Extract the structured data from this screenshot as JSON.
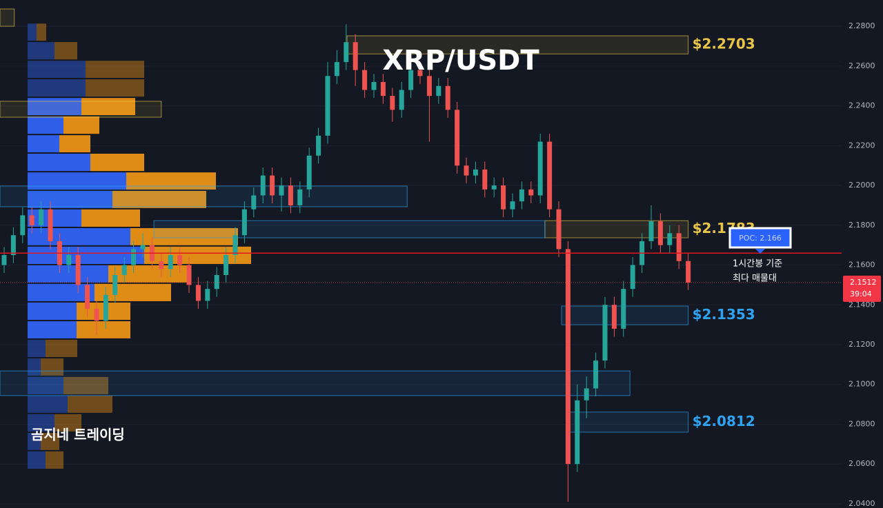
{
  "chart_data": {
    "type": "candlestick",
    "title": "XRP/USDT",
    "watermark": "곰지네 트레이딩",
    "ylim": [
      2.0379,
      2.2932
    ],
    "yticks": [
      {
        "value": 2.28,
        "label": "2.2800"
      },
      {
        "value": 2.26,
        "label": "2.2600"
      },
      {
        "value": 2.24,
        "label": "2.2400"
      },
      {
        "value": 2.22,
        "label": "2.2200"
      },
      {
        "value": 2.2,
        "label": "2.2000"
      },
      {
        "value": 2.18,
        "label": "2.1800"
      },
      {
        "value": 2.16,
        "label": "2.1600"
      },
      {
        "value": 2.14,
        "label": "2.1400"
      },
      {
        "value": 2.12,
        "label": "2.1200"
      },
      {
        "value": 2.1,
        "label": "2.1000"
      },
      {
        "value": 2.08,
        "label": "2.0800"
      },
      {
        "value": 2.06,
        "label": "2.0600"
      },
      {
        "value": 2.04,
        "label": "2.0400"
      }
    ],
    "grid": true,
    "up_color": "#26a69a",
    "down_color": "#ef5350",
    "open": [
      2.16,
      2.165,
      2.175,
      2.185,
      2.18,
      2.188,
      2.172,
      2.16,
      2.165,
      2.15,
      2.138,
      2.132,
      2.145,
      2.155,
      2.16,
      2.168,
      2.17,
      2.162,
      2.158,
      2.165,
      2.16,
      2.15,
      2.142,
      2.148,
      2.155,
      2.165,
      2.175,
      2.188,
      2.195,
      2.205,
      2.195,
      2.2,
      2.19,
      2.198,
      2.215,
      2.225,
      2.255,
      2.262,
      2.272,
      2.258,
      2.248,
      2.252,
      2.245,
      2.238,
      2.248,
      2.258,
      2.255,
      2.245,
      2.25,
      2.238,
      2.21,
      2.205,
      2.208,
      2.198,
      2.2,
      2.188,
      2.192,
      2.198,
      2.195,
      2.222,
      2.188,
      2.168,
      2.06,
      2.092,
      2.098,
      2.112,
      2.14,
      2.128,
      2.148,
      2.16,
      2.172,
      2.182,
      2.17,
      2.176,
      2.162
    ],
    "high": [
      2.169,
      2.179,
      2.189,
      2.189,
      2.192,
      2.192,
      2.176,
      2.169,
      2.169,
      2.154,
      2.142,
      2.149,
      2.159,
      2.164,
      2.172,
      2.176,
      2.174,
      2.166,
      2.169,
      2.169,
      2.164,
      2.154,
      2.152,
      2.159,
      2.169,
      2.179,
      2.192,
      2.199,
      2.209,
      2.209,
      2.204,
      2.204,
      2.202,
      2.219,
      2.229,
      2.262,
      2.268,
      2.281,
      2.276,
      2.262,
      2.256,
      2.256,
      2.249,
      2.252,
      2.262,
      2.262,
      2.259,
      2.254,
      2.254,
      2.242,
      2.214,
      2.212,
      2.212,
      2.204,
      2.204,
      2.196,
      2.202,
      2.202,
      2.226,
      2.226,
      2.192,
      2.172,
      2.1,
      2.104,
      2.116,
      2.144,
      2.144,
      2.152,
      2.164,
      2.176,
      2.19,
      2.186,
      2.18,
      2.18,
      2.166
    ],
    "low": [
      2.156,
      2.161,
      2.171,
      2.176,
      2.176,
      2.168,
      2.156,
      2.156,
      2.146,
      2.134,
      2.125,
      2.128,
      2.141,
      2.151,
      2.156,
      2.164,
      2.158,
      2.154,
      2.154,
      2.156,
      2.146,
      2.138,
      2.138,
      2.144,
      2.151,
      2.161,
      2.171,
      2.184,
      2.191,
      2.191,
      2.187,
      2.186,
      2.186,
      2.194,
      2.211,
      2.221,
      2.251,
      2.258,
      2.25,
      2.244,
      2.244,
      2.241,
      2.232,
      2.234,
      2.244,
      2.251,
      2.222,
      2.241,
      2.234,
      2.206,
      2.201,
      2.201,
      2.194,
      2.194,
      2.184,
      2.184,
      2.188,
      2.191,
      2.191,
      2.184,
      2.164,
      2.041,
      2.056,
      2.083,
      2.094,
      2.108,
      2.124,
      2.124,
      2.144,
      2.156,
      2.168,
      2.166,
      2.166,
      2.158,
      2.1475
    ],
    "close": [
      2.165,
      2.175,
      2.185,
      2.18,
      2.188,
      2.172,
      2.16,
      2.165,
      2.15,
      2.138,
      2.132,
      2.145,
      2.155,
      2.16,
      2.168,
      2.17,
      2.162,
      2.158,
      2.165,
      2.16,
      2.15,
      2.142,
      2.148,
      2.155,
      2.165,
      2.175,
      2.188,
      2.195,
      2.205,
      2.195,
      2.2,
      2.19,
      2.198,
      2.215,
      2.225,
      2.255,
      2.262,
      2.272,
      2.258,
      2.248,
      2.252,
      2.245,
      2.238,
      2.248,
      2.258,
      2.255,
      2.245,
      2.25,
      2.238,
      2.21,
      2.205,
      2.208,
      2.198,
      2.2,
      2.188,
      2.192,
      2.198,
      2.195,
      2.222,
      2.188,
      2.168,
      2.06,
      2.092,
      2.098,
      2.112,
      2.14,
      2.128,
      2.148,
      2.16,
      2.172,
      2.182,
      2.17,
      2.176,
      2.162,
      2.1512
    ],
    "volume_profile": {
      "bins": [
        2.2817,
        2.2724,
        2.263,
        2.2537,
        2.2443,
        2.235,
        2.2256,
        2.2163,
        2.2069,
        2.1976,
        2.1883,
        2.1789,
        2.1696,
        2.1602,
        2.1509,
        2.1415,
        2.1321,
        2.1228,
        2.1134,
        2.1041,
        2.0947,
        2.0854,
        2.076,
        2.0667,
        2.0573
      ],
      "buy": [
        13,
        39,
        84,
        84,
        78,
        52,
        46,
        91,
        143,
        123,
        78,
        149,
        169,
        117,
        97,
        71,
        71,
        26,
        19,
        52,
        58,
        39,
        19,
        26
      ],
      "sell": [
        14,
        33,
        85,
        85,
        78,
        52,
        45,
        78,
        130,
        136,
        85,
        156,
        155,
        117,
        111,
        78,
        78,
        46,
        33,
        65,
        65,
        39,
        27,
        26
      ],
      "buy_color": "#2f5fe8",
      "sell_color": "#df8c16",
      "value_area_high": 2.2443,
      "value_area_low": 2.1228
    },
    "zones": [
      {
        "label": "$2.2703",
        "low": 2.2661,
        "high": 2.2752,
        "color": "#e8c547",
        "start": 37.6,
        "end": 74.5
      },
      {
        "label": "$2.1783",
        "low": 2.1737,
        "high": 2.1823,
        "color": "#e8c547",
        "start": 59,
        "end": 74.5
      },
      {
        "label": "$2.1353",
        "low": 2.13,
        "high": 2.1394,
        "color": "#2ea3f2",
        "start": 60.8,
        "end": 74.5
      },
      {
        "label": "$2.0812",
        "low": 2.076,
        "high": 2.0861,
        "color": "#2ea3f2",
        "start": 61.6,
        "end": 74.5
      },
      {
        "low": 2.2343,
        "high": 2.2423,
        "color": "#e8c547",
        "start": 0,
        "end": 17.5
      },
      {
        "low": 2.28,
        "high": 2.2887,
        "color": "#e8c547",
        "start": 0,
        "end": 1.6
      },
      {
        "low": 2.1893,
        "high": 2.1997,
        "color": "#2ea3f2",
        "start": 0,
        "end": 44.1
      },
      {
        "low": 2.1737,
        "high": 2.1823,
        "color": "#2ea3f2",
        "start": 16.7,
        "end": 59
      },
      {
        "low": 2.0944,
        "high": 2.1068,
        "color": "#2ea3f2",
        "start": 0,
        "end": 68.2
      }
    ],
    "poc": {
      "value": 2.166,
      "label": "POC: 2.166",
      "color": "#e0161c"
    },
    "poc_note": [
      "1시간봉 기준",
      "최다 매물대"
    ],
    "last_price": 2.1512,
    "countdown": "39:04"
  }
}
